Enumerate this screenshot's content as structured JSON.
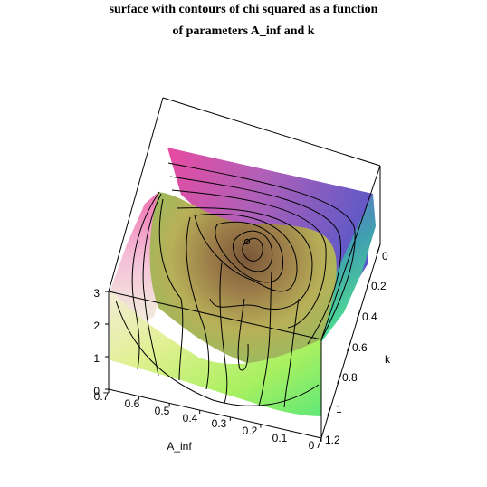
{
  "chart_data": {
    "type": "surface3d",
    "title_line1": "surface with contours of chi squared as a function",
    "title_line2": "of parameters A_inf and k",
    "axes": {
      "x": {
        "label": "A_inf",
        "range": [
          0,
          0.7
        ],
        "ticks": [
          "0",
          "0.1",
          "0.2",
          "0.3",
          "0.4",
          "0.5",
          "0.6",
          "0.7"
        ]
      },
      "y": {
        "label": "k",
        "range": [
          0,
          1.2
        ],
        "ticks": [
          "0",
          "0.2",
          "0.4",
          "0.6",
          "0.8",
          "1",
          "1.2"
        ]
      },
      "z": {
        "label": "",
        "range": [
          0,
          3
        ],
        "ticks": [
          "0",
          "1",
          "2",
          "3"
        ]
      }
    },
    "surface": {
      "description_values": {
        "minimum_point": {
          "A_inf": 0.28,
          "k": 0.3
        },
        "z_max_visible": 3
      },
      "contours": "chi squared level curves projected on surface"
    },
    "colors": {
      "magenta": "#e040a0",
      "pink": "#f0a0c8",
      "yellow_green": "#d8f070",
      "green": "#60e070",
      "teal": "#40b0b0",
      "blue": "#5050c0",
      "brown": "#806040"
    }
  }
}
